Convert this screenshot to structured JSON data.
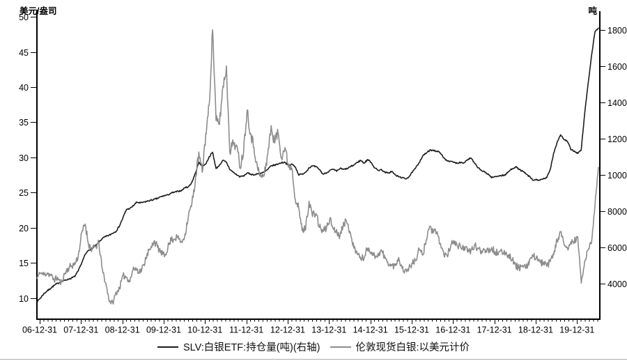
{
  "chart_data": {
    "type": "line",
    "title": "",
    "left_axis": {
      "label": "美元/盎司",
      "ticks": [
        10,
        15,
        20,
        25,
        30,
        35,
        40,
        45,
        50
      ],
      "range": [
        7.0,
        51.0
      ]
    },
    "right_axis": {
      "label": "吨",
      "ticks": [
        4000,
        6000,
        8000,
        10000,
        12000,
        14000,
        16000,
        18000
      ],
      "range": [
        2040,
        19115
      ]
    },
    "x_axis": {
      "tick_labels": [
        "06-12-31",
        "07-12-31",
        "08-12-31",
        "09-12-31",
        "10-12-31",
        "11-12-31",
        "12-12-31",
        "13-12-31",
        "14-12-31",
        "15-12-31",
        "16-12-31",
        "17-12-31",
        "18-12-31",
        "19-12-31"
      ]
    },
    "legend_position": "bottom-center",
    "grid": false,
    "series": [
      {
        "name": "SLV:白银ETF:持仓量(吨)(右轴)",
        "axis": "right",
        "color": "#1c1c1c",
        "freq": "monthly",
        "start": "2007-01",
        "end": "2020-08",
        "jitter": 40,
        "values": [
          3000,
          3200,
          3450,
          3600,
          3750,
          3900,
          4020,
          4100,
          4180,
          4250,
          4300,
          4400,
          4700,
          5150,
          5600,
          5850,
          5950,
          6080,
          6280,
          6500,
          6600,
          6680,
          6780,
          6900,
          7200,
          7650,
          8100,
          8150,
          8300,
          8500,
          8450,
          8500,
          8550,
          8600,
          8650,
          8700,
          8800,
          8850,
          8900,
          9000,
          9050,
          9100,
          9150,
          9300,
          9350,
          9600,
          10100,
          10700,
          10500,
          10600,
          11000,
          11250,
          10350,
          10550,
          10800,
          10700,
          10300,
          10150,
          10000,
          9900,
          9950,
          10100,
          10050,
          10000,
          10050,
          10100,
          10150,
          10300,
          10500,
          10550,
          10600,
          10680,
          10700,
          10500,
          10600,
          10450,
          10000,
          10050,
          10150,
          10400,
          10490,
          10450,
          10300,
          10050,
          10100,
          10250,
          10300,
          10200,
          10360,
          10300,
          10350,
          10450,
          10550,
          10700,
          10800,
          10650,
          10850,
          10700,
          10400,
          10250,
          10300,
          10150,
          10100,
          10200,
          10000,
          9900,
          9850,
          9780,
          9900,
          10150,
          10400,
          10700,
          11050,
          11200,
          11350,
          11380,
          11300,
          11250,
          10950,
          10800,
          10750,
          10700,
          10650,
          10700,
          10680,
          10850,
          10930,
          10650,
          10400,
          10250,
          10150,
          10050,
          9850,
          9900,
          9950,
          9970,
          10000,
          10200,
          10350,
          10450,
          10300,
          10200,
          10050,
          9900,
          9700,
          9750,
          9700,
          9780,
          9850,
          10300,
          11200,
          11800,
          12220,
          11950,
          11850,
          11400,
          11320,
          11190,
          11380,
          13370,
          15040,
          16580,
          17920,
          18100
        ]
      },
      {
        "name": "伦敦现货白银:以美元计价",
        "axis": "left",
        "color": "#8c8c8c",
        "freq": "monthly",
        "start": "2007-01",
        "end": "2020-08",
        "jitter": 0.55,
        "values": [
          12.8,
          13.6,
          13.3,
          13.6,
          13.2,
          12.6,
          12.9,
          12.1,
          13.4,
          14.2,
          14.6,
          14.8,
          16.0,
          19.2,
          20.6,
          17.6,
          16.9,
          17.3,
          17.8,
          14.0,
          12.1,
          9.6,
          9.3,
          10.8,
          11.4,
          13.2,
          13.0,
          12.4,
          14.3,
          14.1,
          13.7,
          14.7,
          16.4,
          16.9,
          18.2,
          17.2,
          16.6,
          15.9,
          17.2,
          18.3,
          18.5,
          18.7,
          17.9,
          19.1,
          21.8,
          23.4,
          26.8,
          30.6,
          27.9,
          33.3,
          37.3,
          48.3,
          35.2,
          34.8,
          40.1,
          42.8,
          30.9,
          32.1,
          31.6,
          28.6,
          31.0,
          36.8,
          33.5,
          31.5,
          28.5,
          27.2,
          27.5,
          30.5,
          34.3,
          32.2,
          33.6,
          30.1,
          31.4,
          28.8,
          28.6,
          24.2,
          22.7,
          19.6,
          19.9,
          23.8,
          21.7,
          22.1,
          20.1,
          19.5,
          19.9,
          21.3,
          19.9,
          19.6,
          18.9,
          20.9,
          20.6,
          19.4,
          17.1,
          16.4,
          15.6,
          15.8,
          17.1,
          16.6,
          16.0,
          16.2,
          16.8,
          15.7,
          14.8,
          14.6,
          14.6,
          15.8,
          14.2,
          13.9,
          14.3,
          14.9,
          15.4,
          16.9,
          16.0,
          18.4,
          20.2,
          19.4,
          19.2,
          17.8,
          16.5,
          16.0,
          17.1,
          18.3,
          17.4,
          17.3,
          17.3,
          16.6,
          16.7,
          17.5,
          17.0,
          16.7,
          17.0,
          16.8,
          17.2,
          16.5,
          16.4,
          16.5,
          16.4,
          16.1,
          15.5,
          14.6,
          14.3,
          14.6,
          14.2,
          15.4,
          15.9,
          15.9,
          15.1,
          15.0,
          14.5,
          15.2,
          16.2,
          18.2,
          19.3,
          17.6,
          17.0,
          17.9,
          18.1,
          18.6,
          12.2,
          15.1,
          16.9,
          17.9,
          23.5,
          28.6
        ]
      }
    ]
  }
}
